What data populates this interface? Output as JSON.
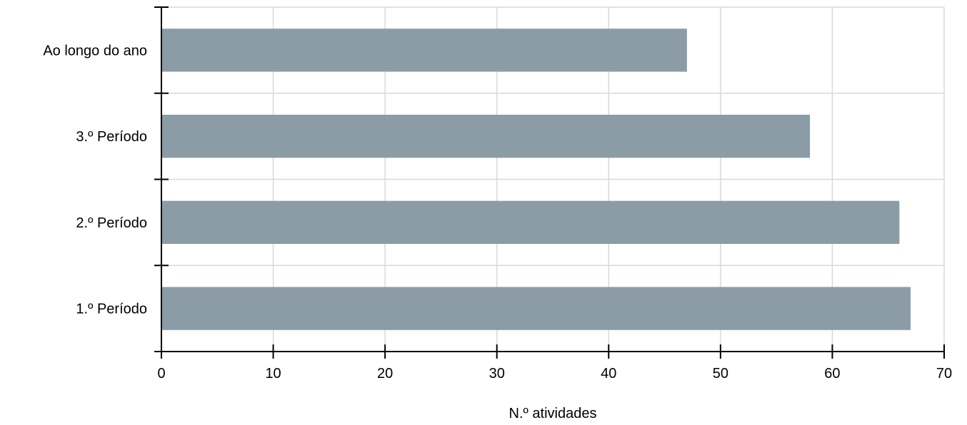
{
  "chart_data": {
    "type": "bar",
    "orientation": "horizontal",
    "categories": [
      "Ao longo do ano",
      "3.º Período",
      "2.º Período",
      "1.º Período"
    ],
    "values": [
      47,
      58,
      66,
      67
    ],
    "title": "",
    "xlabel": "N.º atividades",
    "ylabel": "",
    "xlim": [
      0,
      70
    ],
    "xticks": [
      0,
      10,
      20,
      30,
      40,
      50,
      60,
      70
    ],
    "xtick_labels": [
      "0",
      "10",
      "20",
      "30",
      "40",
      "50",
      "60",
      "70"
    ],
    "grid": true,
    "legend": "none",
    "colors": {
      "bar": "#8c9ca6",
      "grid": "#d9d9d9",
      "axis": "#000000"
    }
  }
}
